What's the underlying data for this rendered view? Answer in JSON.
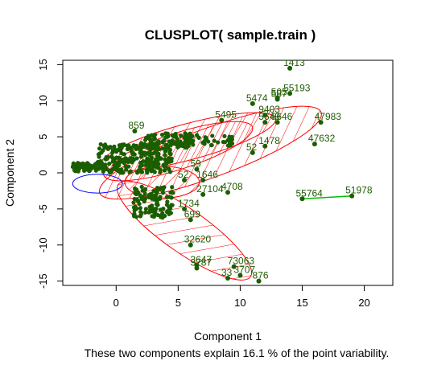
{
  "chart_data": {
    "type": "scatter",
    "title": "CLUSPLOT( sample.train )",
    "xlabel": "Component 1",
    "ylabel": "Component 2",
    "subtitle": "These two components explain 16.1 % of the point variability.",
    "xlim": [
      -4.3,
      22.3
    ],
    "ylim": [
      -15.6,
      15.6
    ],
    "xticks": [
      0,
      5,
      10,
      15,
      20
    ],
    "yticks": [
      -15,
      -10,
      -5,
      0,
      5,
      10,
      15
    ],
    "colors": {
      "point": "#1a5e00",
      "label": "#1f5c00",
      "ellipse": "#ff0000",
      "ellipse_blue": "#0000ff",
      "line": "#00bb00"
    },
    "labeled_points": [
      {
        "label": "1413",
        "x": 14.0,
        "y": 14.5
      },
      {
        "label": "55193",
        "x": 14.0,
        "y": 11.0
      },
      {
        "label": "505",
        "x": 13.0,
        "y": 10.4
      },
      {
        "label": "587",
        "x": 13.0,
        "y": 10.2
      },
      {
        "label": "5474",
        "x": 11.0,
        "y": 9.6
      },
      {
        "label": "9403",
        "x": 12.0,
        "y": 8.0
      },
      {
        "label": "47983",
        "x": 16.5,
        "y": 7.0
      },
      {
        "label": "5649",
        "x": 12.0,
        "y": 7.0
      },
      {
        "label": "5646",
        "x": 13.0,
        "y": 7.0
      },
      {
        "label": "5495",
        "x": 8.5,
        "y": 7.3
      },
      {
        "label": "47632",
        "x": 16.0,
        "y": 4.0
      },
      {
        "label": "1478",
        "x": 12.0,
        "y": 3.7
      },
      {
        "label": "52",
        "x": 11.0,
        "y": 2.8
      },
      {
        "label": "859",
        "x": 1.5,
        "y": 5.8
      },
      {
        "label": "55764",
        "x": 15.0,
        "y": -3.6
      },
      {
        "label": "51978",
        "x": 19.0,
        "y": -3.2
      },
      {
        "label": "32620",
        "x": 6.0,
        "y": -10.0
      },
      {
        "label": "3647",
        "x": 6.5,
        "y": -12.8
      },
      {
        "label": "3787",
        "x": 6.5,
        "y": -13.2
      },
      {
        "label": "73063",
        "x": 9.5,
        "y": -13.0
      },
      {
        "label": "3707",
        "x": 10.0,
        "y": -14.2
      },
      {
        "label": "33",
        "x": 9.0,
        "y": -14.6
      },
      {
        "label": "876",
        "x": 11.5,
        "y": -15.0
      },
      {
        "label": "4708",
        "x": 9.0,
        "y": -2.7
      },
      {
        "label": "27104",
        "x": 7.0,
        "y": -3.0
      },
      {
        "label": "1734",
        "x": 5.5,
        "y": -5.0
      },
      {
        "label": "699",
        "x": 6.0,
        "y": -6.5
      },
      {
        "label": "1646",
        "x": 7.0,
        "y": -1.0
      },
      {
        "label": "52",
        "x": 5.5,
        "y": -1.0
      },
      {
        "label": "59",
        "x": 6.5,
        "y": 0.5
      }
    ],
    "segment": {
      "from": [
        15.0,
        -3.6
      ],
      "to": [
        19.0,
        -3.2
      ]
    },
    "ellipses": [
      {
        "color": "ellipse",
        "cx": 7.6,
        "cy": 2.8,
        "rx": 9.5,
        "ry": 3.4,
        "angle": 20
      },
      {
        "color": "ellipse",
        "cx": 5.8,
        "cy": 4.3,
        "rx": 7.3,
        "ry": 2.5,
        "angle": 15
      },
      {
        "color": "ellipse",
        "cx": 5.0,
        "cy": 3.0,
        "rx": 6.3,
        "ry": 2.5,
        "angle": 18
      },
      {
        "color": "ellipse",
        "cx": 3.7,
        "cy": -1.3,
        "rx": 3.0,
        "ry": 2.2,
        "angle": 0
      },
      {
        "color": "ellipse",
        "cx": 5.5,
        "cy": -8.0,
        "rx": 6.5,
        "ry": 3.0,
        "angle": -35
      },
      {
        "color": "ellipse_blue",
        "cx": -1.5,
        "cy": -1.5,
        "rx": 2.0,
        "ry": 1.3,
        "angle": 0
      }
    ]
  }
}
